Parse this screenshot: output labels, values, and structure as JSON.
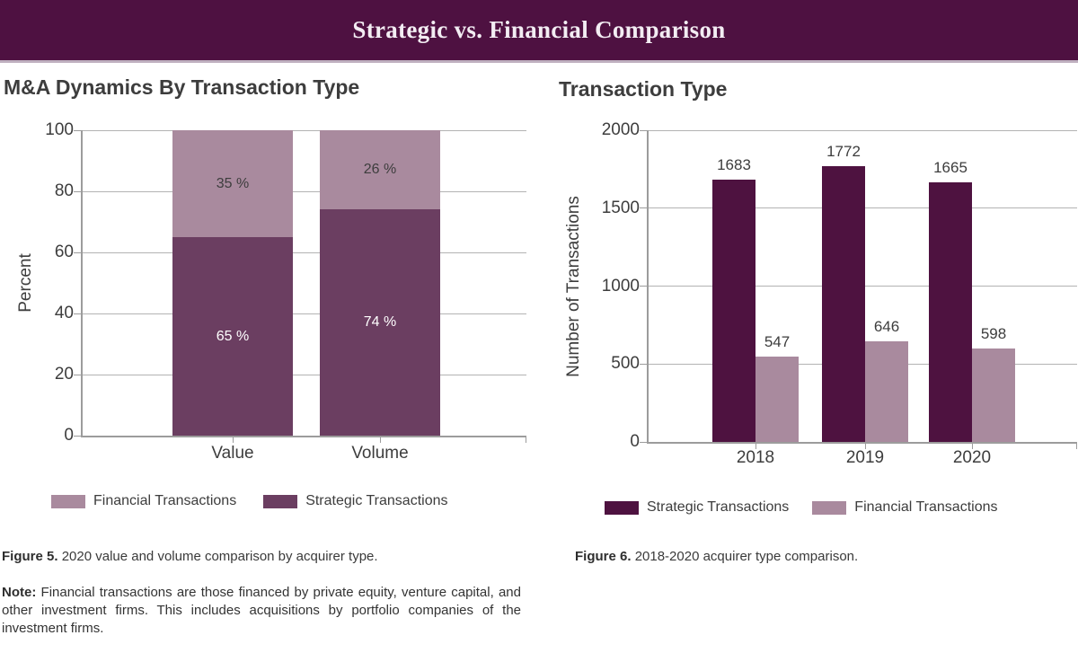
{
  "banner": {
    "title": "Strategic vs. Financial Comparison",
    "background": "#4e1141",
    "underline_color": "#bfb0bf"
  },
  "chart_data": [
    {
      "type": "bar",
      "subtype": "stacked-percent",
      "title": "M&A Dynamics By Transaction Type",
      "xlabel": "",
      "ylabel": "Percent",
      "ylim": [
        0,
        100
      ],
      "yticks": [
        0,
        20,
        40,
        60,
        80,
        100
      ],
      "grid": "horizontal",
      "categories": [
        "Value",
        "Volume"
      ],
      "series": [
        {
          "name": "Strategic Transactions",
          "values": [
            65,
            74
          ],
          "labels": [
            "65 %",
            "74 %"
          ],
          "color": "#6b3e61",
          "label_color": "#ffffff"
        },
        {
          "name": "Financial Transactions",
          "values": [
            35,
            26
          ],
          "labels": [
            "35 %",
            "26 %"
          ],
          "color": "#a98a9e",
          "label_color": "#3d3d3d"
        }
      ],
      "legend": [
        {
          "key": "financial",
          "label": "Financial Transactions",
          "color": "#a98a9e"
        },
        {
          "key": "strategic",
          "label": "Strategic Transactions",
          "color": "#6b3e61"
        }
      ],
      "legend_position": "bottom"
    },
    {
      "type": "bar",
      "subtype": "grouped",
      "title": "Transaction Type",
      "xlabel": "",
      "ylabel": "Number of Transactions",
      "ylim": [
        0,
        2000
      ],
      "yticks": [
        0,
        500,
        1000,
        1500,
        2000
      ],
      "grid": "horizontal",
      "categories": [
        "2018",
        "2019",
        "2020"
      ],
      "series": [
        {
          "name": "Strategic Transactions",
          "values": [
            1683,
            1772,
            1665
          ],
          "color": "#4e1240"
        },
        {
          "name": "Financial Transactions",
          "values": [
            547,
            646,
            598
          ],
          "color": "#a98a9e"
        }
      ],
      "legend": [
        {
          "key": "strategic",
          "label": "Strategic Transactions",
          "color": "#4e1240"
        },
        {
          "key": "financial",
          "label": "Financial Transactions",
          "color": "#a98a9e"
        }
      ],
      "legend_position": "bottom"
    }
  ],
  "figures": {
    "fig5": {
      "label": "Figure 5.",
      "text": "2020 value and volume comparison by acquirer type."
    },
    "fig6": {
      "label": "Figure 6.",
      "text": "2018-2020 acquirer type comparison."
    }
  },
  "note": {
    "label": "Note:",
    "text": "Financial transactions are those financed by private equity, venture capital, and other investment firms. This includes acquisitions by portfolio companies of the investment firms."
  },
  "colors": {
    "strategic_dark": "#4e1240",
    "strategic_medium": "#6b3e61",
    "financial_mauve": "#a98a9e",
    "text_dark": "#3d3d3d",
    "gridline": "#b3b3b3",
    "axis": "#9c9c9c",
    "banner_text": "#f3edf3"
  }
}
